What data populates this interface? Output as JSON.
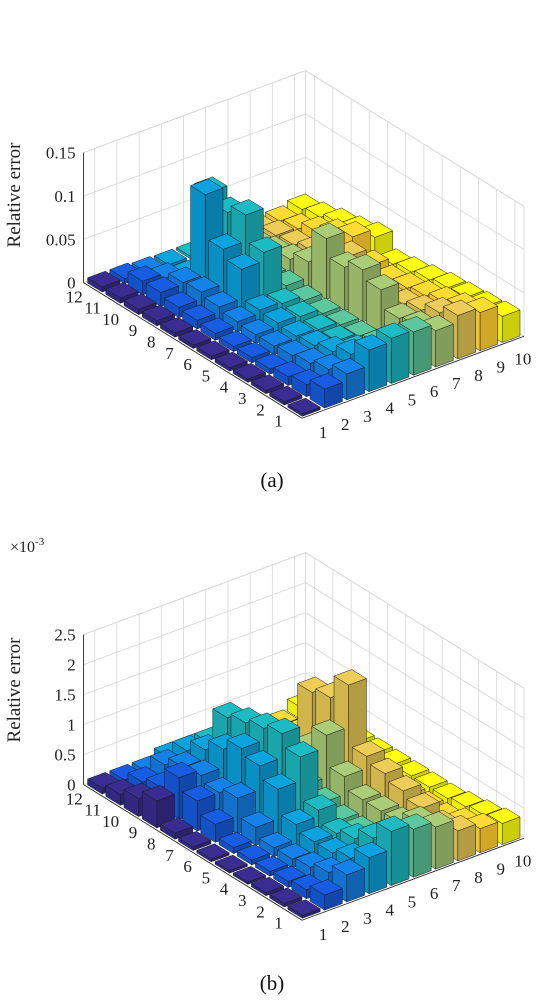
{
  "chart_data": [
    {
      "type": "bar3d",
      "caption": "(a)",
      "zlabel": "Relative error",
      "zmultiplier": "",
      "zlim": [
        0,
        0.15
      ],
      "zticks": [
        "0",
        "0.05",
        "0.1",
        "0.15"
      ],
      "zticks_values": [
        0,
        0.05,
        0.1,
        0.15
      ],
      "x_ticks": [
        "1",
        "2",
        "3",
        "4",
        "5",
        "6",
        "7",
        "8",
        "9",
        "10"
      ],
      "y_ticks": [
        "1",
        "2",
        "3",
        "4",
        "5",
        "6",
        "7",
        "8",
        "9",
        "10",
        "11",
        "12"
      ],
      "grid": true,
      "colormap": "parula",
      "values": [
        [
          0.003,
          0.004,
          0.004,
          0.004,
          0.004,
          0.004,
          0.004,
          0.005,
          0.006,
          0.006,
          0.006,
          0.006
        ],
        [
          0.022,
          0.014,
          0.01,
          0.006,
          0.006,
          0.006,
          0.008,
          0.01,
          0.012,
          0.016,
          0.016,
          0.006
        ],
        [
          0.03,
          0.022,
          0.016,
          0.012,
          0.01,
          0.01,
          0.012,
          0.016,
          0.02,
          0.018,
          0.01,
          0.004
        ],
        [
          0.048,
          0.03,
          0.02,
          0.014,
          0.012,
          0.014,
          0.016,
          0.05,
          0.06,
          0.11,
          0.004,
          0.003
        ],
        [
          0.052,
          0.018,
          0.012,
          0.01,
          0.01,
          0.012,
          0.014,
          0.06,
          0.09,
          0.08,
          0.09,
          0.003
        ],
        [
          0.05,
          0.012,
          0.01,
          0.006,
          0.006,
          0.006,
          0.008,
          0.012,
          0.01,
          0.014,
          0.02,
          0.006
        ],
        [
          0.042,
          0.034,
          0.03,
          0.05,
          0.06,
          0.05,
          0.07,
          0.03,
          0.02,
          0.016,
          0.012,
          0.006
        ],
        [
          0.05,
          0.04,
          0.03,
          0.024,
          0.02,
          0.016,
          0.04,
          0.03,
          0.02,
          0.014,
          0.012,
          0.006
        ],
        [
          0.044,
          0.036,
          0.03,
          0.024,
          0.02,
          0.016,
          0.02,
          0.04,
          0.03,
          0.02,
          0.01,
          0.006
        ],
        [
          0.03,
          0.028,
          0.026,
          0.024,
          0.02,
          0.016,
          0.012,
          0.03,
          0.024,
          0.02,
          0.014,
          0.01
        ]
      ]
    },
    {
      "type": "bar3d",
      "caption": "(b)",
      "zlabel": "Relative error",
      "zmultiplier": "×10",
      "zmultiplier_exp": "-3",
      "zlim": [
        0,
        2.5
      ],
      "zticks": [
        "0",
        "0.5",
        "1",
        "1.5",
        "2",
        "2.5"
      ],
      "zticks_values": [
        0,
        0.5,
        1,
        1.5,
        2,
        2.5
      ],
      "x_ticks": [
        "1",
        "2",
        "3",
        "4",
        "5",
        "6",
        "7",
        "8",
        "9",
        "10"
      ],
      "y_ticks": [
        "1",
        "2",
        "3",
        "4",
        "5",
        "6",
        "7",
        "8",
        "9",
        "10",
        "11",
        "12"
      ],
      "grid": true,
      "colormap": "parula",
      "values": [
        [
          0.05,
          0.06,
          0.05,
          0.04,
          0.04,
          0.04,
          0.06,
          0.1,
          0.45,
          0.3,
          0.18,
          0.1
        ],
        [
          0.25,
          0.15,
          0.1,
          0.08,
          0.08,
          0.1,
          0.3,
          0.5,
          0.7,
          0.35,
          0.25,
          0.1
        ],
        [
          0.45,
          0.3,
          0.2,
          0.15,
          0.15,
          0.3,
          0.6,
          0.5,
          0.6,
          0.55,
          0.4,
          0.1
        ],
        [
          0.6,
          0.4,
          0.3,
          0.3,
          0.4,
          0.8,
          1.0,
          1.1,
          0.9,
          0.7,
          0.5,
          0.2
        ],
        [
          0.9,
          0.6,
          0.4,
          0.3,
          0.5,
          1.2,
          1.4,
          1.3,
          1.2,
          1.1,
          0.5,
          0.2
        ],
        [
          0.8,
          0.4,
          0.3,
          0.2,
          0.2,
          0.3,
          0.4,
          0.5,
          0.4,
          0.3,
          0.2,
          0.1
        ],
        [
          0.7,
          0.6,
          0.4,
          0.4,
          0.4,
          0.6,
          1.1,
          0.7,
          0.3,
          0.2,
          0.2,
          0.1
        ],
        [
          0.5,
          0.4,
          0.5,
          0.6,
          0.7,
          0.8,
          1.8,
          1.4,
          1.3,
          0.2,
          0.1,
          0.05
        ],
        [
          0.4,
          0.3,
          0.2,
          0.2,
          0.2,
          0.2,
          0.3,
          0.2,
          0.2,
          0.15,
          0.1,
          0.05
        ],
        [
          0.35,
          0.3,
          0.25,
          0.2,
          0.2,
          0.2,
          0.2,
          0.2,
          0.2,
          0.2,
          0.2,
          0.2
        ]
      ]
    }
  ]
}
